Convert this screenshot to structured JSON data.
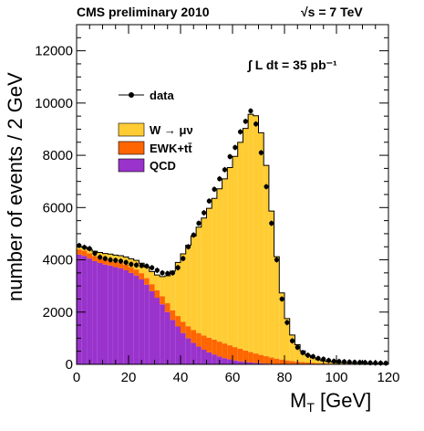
{
  "header": {
    "left": "CMS preliminary 2010",
    "right": "√s = 7 TeV"
  },
  "annotation": {
    "lumi": "∫ L dt = 35 pb⁻¹"
  },
  "colors": {
    "signal": "#ffcc33",
    "ewk": "#ff6600",
    "qcd": "#9933cc",
    "data": "#000000",
    "outline": "#000000"
  },
  "chart_data": {
    "type": "bar",
    "xlabel": "M_T [GeV]",
    "xlabel_main": "M",
    "xlabel_sub": "T",
    "xlabel_unit": " [GeV]",
    "ylabel": "number of events / 2 GeV",
    "xlim": [
      0,
      120
    ],
    "ylim": [
      0,
      13000
    ],
    "xticks": [
      "0",
      "20",
      "40",
      "60",
      "80",
      "100",
      "120"
    ],
    "yticks": [
      "0",
      "2000",
      "4000",
      "6000",
      "8000",
      "10000",
      "12000"
    ],
    "bin_width": 2,
    "bin_edges_start": 0,
    "legend": [
      {
        "key": "data",
        "label": "data",
        "kind": "marker"
      },
      {
        "key": "signal",
        "label": "W → μν",
        "kind": "fill"
      },
      {
        "key": "ewk",
        "label": "EWK+tt̄",
        "kind": "fill"
      },
      {
        "key": "qcd",
        "label": "QCD",
        "kind": "fill"
      }
    ],
    "series": [
      {
        "key": "qcd",
        "values": [
          4200,
          4150,
          4050,
          3950,
          3880,
          3820,
          3780,
          3720,
          3680,
          3600,
          3500,
          3400,
          3250,
          3050,
          2800,
          2550,
          2300,
          2000,
          1700,
          1450,
          1200,
          1000,
          820,
          680,
          560,
          460,
          380,
          300,
          240,
          190,
          150,
          115,
          90,
          70,
          55,
          42,
          32,
          25,
          19,
          14,
          11,
          8,
          6,
          5,
          4,
          3,
          2,
          2,
          1,
          1,
          1,
          1,
          0,
          0,
          0,
          0,
          0,
          0,
          0,
          0
        ]
      },
      {
        "key": "ewk",
        "values": [
          200,
          200,
          200,
          200,
          200,
          200,
          200,
          200,
          200,
          210,
          220,
          230,
          240,
          250,
          270,
          290,
          310,
          340,
          370,
          400,
          430,
          460,
          490,
          520,
          540,
          560,
          570,
          570,
          560,
          540,
          510,
          480,
          440,
          400,
          360,
          320,
          280,
          240,
          200,
          170,
          140,
          115,
          95,
          80,
          65,
          55,
          45,
          38,
          32,
          27,
          23,
          20,
          17,
          15,
          13,
          11,
          10,
          9,
          8,
          7
        ]
      },
      {
        "key": "signal",
        "values": [
          100,
          130,
          150,
          180,
          200,
          220,
          240,
          260,
          280,
          300,
          320,
          350,
          380,
          420,
          480,
          580,
          750,
          1050,
          1500,
          2050,
          2600,
          3100,
          3600,
          4050,
          4500,
          4950,
          5400,
          5850,
          6300,
          6800,
          7300,
          7900,
          8500,
          9100,
          9100,
          8500,
          7300,
          5600,
          3900,
          2550,
          1600,
          1000,
          650,
          430,
          280,
          190,
          130,
          90,
          70,
          55,
          45,
          40,
          35,
          32,
          30,
          28,
          26,
          24,
          22,
          20
        ]
      }
    ],
    "data_points": [
      4550,
      4480,
      4430,
      4250,
      4100,
      4050,
      4000,
      3980,
      3950,
      3900,
      3830,
      3800,
      3780,
      3760,
      3700,
      3600,
      3500,
      3480,
      3500,
      3700,
      4050,
      4500,
      4950,
      5400,
      5800,
      6250,
      6700,
      7100,
      7450,
      7950,
      8300,
      8900,
      9300,
      9700,
      9200,
      8100,
      6800,
      5400,
      4000,
      2500,
      1600,
      900,
      650,
      450,
      350,
      300,
      230,
      200,
      150,
      120,
      110,
      100,
      90,
      80,
      75,
      70,
      60,
      55,
      50,
      45
    ]
  }
}
